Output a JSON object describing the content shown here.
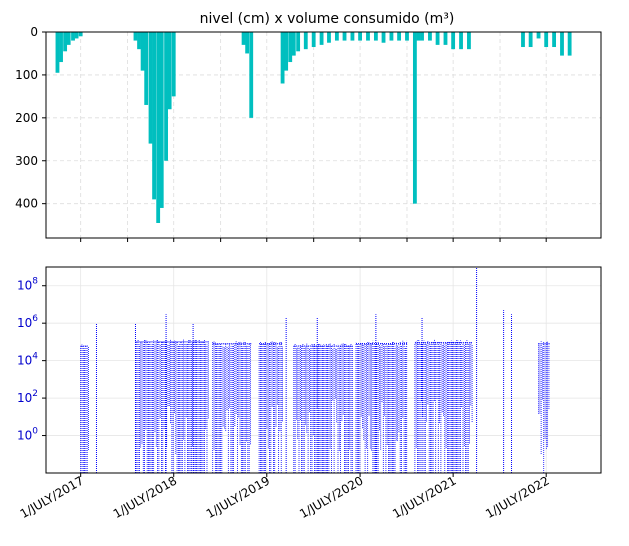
{
  "chart_data": [
    {
      "type": "bar",
      "title": "nivel (cm) x volume consumido (m³)",
      "xlabel": "",
      "ylabel": "",
      "y_inverted": true,
      "ylim": [
        480,
        0
      ],
      "yticks": [
        0,
        100,
        200,
        300,
        400
      ],
      "x_tick_dates": [
        "2017-07-01",
        "2018-07-01",
        "2019-07-01",
        "2020-07-01",
        "2021-07-01",
        "2022-07-01"
      ],
      "xlim": [
        "2017-02-15",
        "2023-02-01"
      ],
      "grid": true,
      "color": "#00bfbf",
      "series": [
        {
          "x": [
            "2017-04-01",
            "2017-04-15",
            "2017-05-01",
            "2017-05-15",
            "2017-06-01",
            "2017-06-15",
            "2017-07-01",
            "2018-02-01",
            "2018-02-15",
            "2018-03-01",
            "2018-03-15",
            "2018-04-01",
            "2018-04-15",
            "2018-05-01",
            "2018-05-15",
            "2018-06-01",
            "2018-06-15",
            "2018-07-01",
            "2019-04-01",
            "2019-04-15",
            "2019-05-01",
            "2019-09-01",
            "2019-09-15",
            "2019-10-01",
            "2019-10-15",
            "2019-11-01",
            "2019-12-01",
            "2020-01-01",
            "2020-02-01",
            "2020-03-01",
            "2020-04-01",
            "2020-05-01",
            "2020-06-01",
            "2020-07-01",
            "2020-08-01",
            "2020-09-01",
            "2020-10-01",
            "2020-11-01",
            "2020-12-01",
            "2021-01-01",
            "2021-02-01",
            "2021-02-15",
            "2021-03-01",
            "2021-04-01",
            "2021-05-01",
            "2021-06-01",
            "2021-07-01",
            "2021-08-01",
            "2021-09-01",
            "2022-04-01",
            "2022-05-01",
            "2022-06-01",
            "2022-07-01",
            "2022-08-01",
            "2022-09-01",
            "2022-10-01"
          ],
          "values": [
            95,
            70,
            45,
            30,
            20,
            15,
            10,
            20,
            40,
            90,
            170,
            260,
            390,
            445,
            410,
            300,
            180,
            150,
            30,
            50,
            200,
            120,
            90,
            70,
            55,
            45,
            40,
            35,
            30,
            25,
            20,
            20,
            20,
            20,
            20,
            20,
            25,
            20,
            20,
            20,
            400,
            20,
            20,
            20,
            30,
            30,
            40,
            40,
            40,
            35,
            35,
            15,
            35,
            35,
            55,
            55
          ]
        }
      ]
    },
    {
      "type": "line",
      "xlabel": "",
      "ylabel": "",
      "yscale": "log",
      "ylim": [
        0.01,
        1000000000
      ],
      "ytick_labels": [
        "10^0",
        "10^2",
        "10^4",
        "10^6",
        "10^8"
      ],
      "ytick_values": [
        1,
        100,
        10000,
        1000000,
        100000000
      ],
      "x_tick_labels": [
        "1/JULY/2017",
        "1/JULY/2018",
        "1/JULY/2019",
        "1/JULY/2020",
        "1/JULY/2021",
        "1/JULY/2022"
      ],
      "x_tick_dates": [
        "2017-07-01",
        "2018-07-01",
        "2019-07-01",
        "2020-07-01",
        "2021-07-01",
        "2022-07-01"
      ],
      "xlim": [
        "2017-02-15",
        "2023-02-01"
      ],
      "grid": true,
      "color": "#0000ff",
      "line_style": "dotted",
      "active_periods": [
        {
          "start": "2017-07-01",
          "end": "2017-08-01",
          "typical": 60000
        },
        {
          "start": "2018-02-01",
          "end": "2018-11-15",
          "typical": 100000
        },
        {
          "start": "2018-12-01",
          "end": "2019-05-01",
          "typical": 80000
        },
        {
          "start": "2019-06-01",
          "end": "2019-09-01",
          "typical": 80000
        },
        {
          "start": "2019-10-15",
          "end": "2020-06-01",
          "typical": 60000
        },
        {
          "start": "2020-06-15",
          "end": "2021-01-01",
          "typical": 80000
        },
        {
          "start": "2021-02-01",
          "end": "2021-09-15",
          "typical": 90000
        },
        {
          "start": "2022-06-01",
          "end": "2022-07-15",
          "typical": 80000
        }
      ],
      "spikes": [
        {
          "x": "2017-09-01",
          "y": 1000000
        },
        {
          "x": "2018-02-01",
          "y": 1000000
        },
        {
          "x": "2018-06-01",
          "y": 3000000
        },
        {
          "x": "2018-09-15",
          "y": 1000000
        },
        {
          "x": "2019-09-15",
          "y": 2000000
        },
        {
          "x": "2020-01-15",
          "y": 2000000
        },
        {
          "x": "2020-09-01",
          "y": 3000000
        },
        {
          "x": "2021-03-01",
          "y": 2000000
        },
        {
          "x": "2021-10-01",
          "y": 1000000000
        },
        {
          "x": "2022-01-15",
          "y": 5000000
        },
        {
          "x": "2022-02-15",
          "y": 3000000
        }
      ]
    }
  ]
}
